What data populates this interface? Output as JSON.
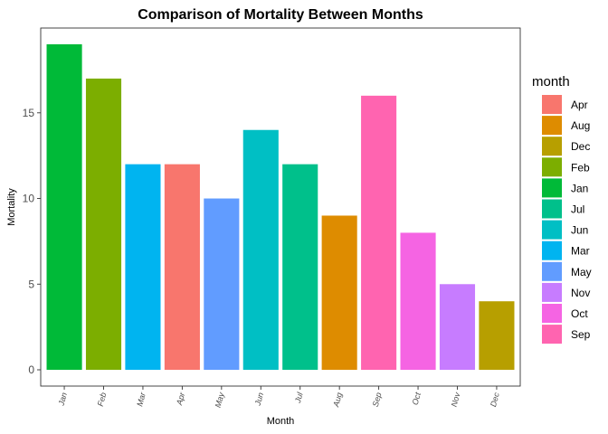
{
  "chart_data": {
    "type": "bar",
    "title": "Comparison of Mortality Between Months",
    "xlabel": "Month",
    "ylabel": "Mortality",
    "categories": [
      "Jan",
      "Feb",
      "Mar",
      "Apr",
      "May",
      "Jun",
      "Jul",
      "Aug",
      "Sep",
      "Oct",
      "Nov",
      "Dec"
    ],
    "values": [
      19,
      17,
      12,
      12,
      10,
      14,
      12,
      9,
      16,
      8,
      5,
      4
    ],
    "ylim": [
      -0.95,
      19.95
    ],
    "yticks": [
      0,
      5,
      10,
      15
    ],
    "grid": false,
    "legend": {
      "title": "month",
      "position": "right",
      "entries": [
        "Apr",
        "Aug",
        "Dec",
        "Feb",
        "Jan",
        "Jul",
        "Jun",
        "Mar",
        "May",
        "Nov",
        "Oct",
        "Sep"
      ]
    },
    "colors": {
      "Apr": "#F8766D",
      "Aug": "#DE8C00",
      "Dec": "#B79F00",
      "Feb": "#7CAE00",
      "Jan": "#00BA38",
      "Jul": "#00C08B",
      "Jun": "#00BFC4",
      "Mar": "#00B4F0",
      "May": "#619CFF",
      "Nov": "#C77CFF",
      "Oct": "#F564E3",
      "Sep": "#FF64B0"
    }
  }
}
